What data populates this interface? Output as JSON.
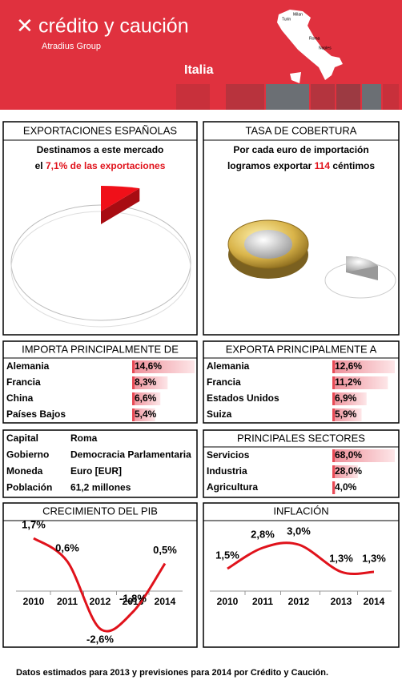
{
  "header": {
    "brand": "crédito y caución",
    "subbrand": "Atradius Group",
    "country": "Italia",
    "map_cities": [
      "Milan",
      "Turin",
      "Roma",
      "Naples"
    ]
  },
  "exports_share": {
    "title": "EXPORTACIONES ESPAÑOLAS",
    "line1": "Destinamos a este mercado",
    "prefix": "el",
    "share": {
      "value": 7.1,
      "label": "7,1%"
    },
    "suffix": "de las exportaciones"
  },
  "coverage": {
    "title": "TASA DE COBERTURA",
    "line1": "Por cada euro de importación",
    "prefix": "logramos exportar",
    "value": 114,
    "suffix": "céntimos"
  },
  "imports": {
    "title": "IMPORTA PRINCIPALMENTE DE",
    "rows": [
      {
        "name": "Alemania",
        "value": 14.6,
        "label": "14,6%"
      },
      {
        "name": "Francia",
        "value": 8.3,
        "label": "8,3%"
      },
      {
        "name": "China",
        "value": 6.6,
        "label": "6,6%"
      },
      {
        "name": "Países Bajos",
        "value": 5.4,
        "label": "5,4%"
      }
    ]
  },
  "exports_to": {
    "title": "EXPORTA PRINCIPALMENTE A",
    "rows": [
      {
        "name": "Alemania",
        "value": 12.6,
        "label": "12,6%"
      },
      {
        "name": "Francia",
        "value": 11.2,
        "label": "11,2%"
      },
      {
        "name": "Estados Unidos",
        "value": 6.9,
        "label": "6,9%"
      },
      {
        "name": "Suiza",
        "value": 5.9,
        "label": "5,9%"
      }
    ]
  },
  "facts": {
    "rows": [
      [
        "Capital",
        "Roma"
      ],
      [
        "Gobierno",
        "Democracia Parlamentaria"
      ],
      [
        "Moneda",
        "Euro [EUR]"
      ],
      [
        "Población",
        "61,2 millones"
      ]
    ]
  },
  "sectors": {
    "title": "PRINCIPALES SECTORES",
    "rows": [
      {
        "name": "Servicios",
        "value": 68.0,
        "label": "68,0%"
      },
      {
        "name": "Industria",
        "value": 28.0,
        "label": "28,0%"
      },
      {
        "name": "Agricultura",
        "value": 4.0,
        "label": "4,0%"
      }
    ]
  },
  "gdp": {
    "type": "line",
    "title": "CRECIMIENTO DEL PIB",
    "categories": [
      "2010",
      "2011",
      "2012",
      "2013",
      "2014"
    ],
    "values": [
      1.7,
      0.6,
      -2.6,
      -1.8,
      0.5
    ],
    "value_labels": [
      "1,7%",
      "0,6%",
      "-2,6%",
      "-1,8%",
      "0,5%"
    ],
    "color": "#e0121b"
  },
  "inflation": {
    "type": "line",
    "title": "INFLACIÓN",
    "categories": [
      "2010",
      "2011",
      "2012",
      "2013",
      "2014"
    ],
    "values": [
      1.5,
      2.8,
      3.0,
      1.3,
      1.3
    ],
    "value_labels": [
      "1,5%",
      "2,8%",
      "3,0%",
      "1,3%",
      "1,3%"
    ],
    "color": "#e0121b"
  },
  "footer": "Datos estimados para 2013 y previsiones para 2014 por Crédito y Caución."
}
